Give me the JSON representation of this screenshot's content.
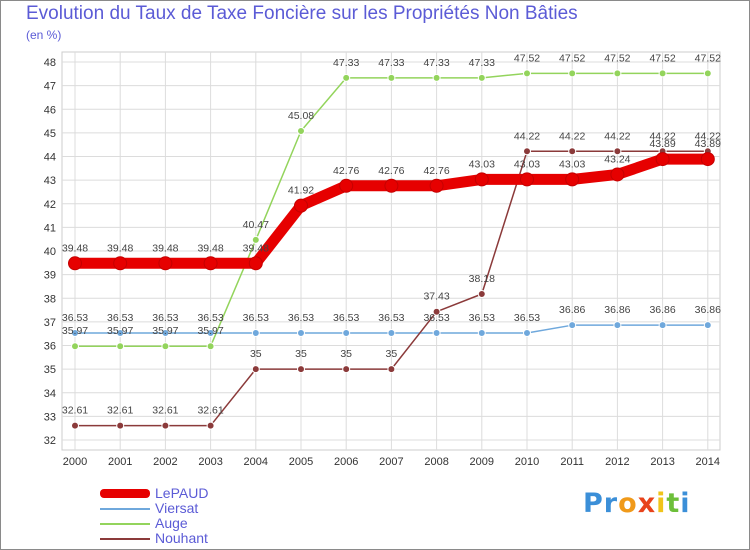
{
  "chart_data": {
    "type": "line",
    "title": "Evolution du Taux de Taxe Foncière sur les Propriétés Non Bâties",
    "ylabel": "(en %)",
    "x": [
      "2000",
      "2001",
      "2002",
      "2003",
      "2004",
      "2005",
      "2006",
      "2007",
      "2008",
      "2009",
      "2010",
      "2011",
      "2012",
      "2013",
      "2014"
    ],
    "ylim": [
      32,
      48
    ],
    "yticks": [
      32,
      33,
      34,
      35,
      36,
      37,
      38,
      39,
      40,
      41,
      42,
      43,
      44,
      45,
      46,
      47,
      48
    ],
    "grid": true,
    "legend_position": "bottom-left",
    "series": [
      {
        "name": "LePAUD",
        "color": "#e60000",
        "values": [
          39.48,
          39.48,
          39.48,
          39.48,
          39.48,
          41.92,
          42.76,
          42.76,
          42.76,
          43.03,
          43.03,
          43.03,
          43.24,
          43.89,
          43.89
        ],
        "labels": [
          "39.48",
          "39.48",
          "39.48",
          "39.48",
          "39.48",
          "41.92",
          "42.76",
          "42.76",
          "42.76",
          "43.03",
          "43.03",
          "43.03",
          "43.24",
          "43.89",
          "43.89"
        ]
      },
      {
        "name": "Viersat",
        "color": "#6fa8dc",
        "values": [
          36.53,
          36.53,
          36.53,
          36.53,
          36.53,
          36.53,
          36.53,
          36.53,
          36.53,
          36.53,
          36.53,
          36.86,
          36.86,
          36.86,
          36.86
        ],
        "labels": [
          "36.53",
          "36.53",
          "36.53",
          "36.53",
          "36.53",
          "36.53",
          "36.53",
          "36.53",
          "36.53",
          "36.53",
          "36.53",
          "36.86",
          "36.86",
          "36.86",
          "36.86"
        ]
      },
      {
        "name": "Auge",
        "color": "#93d45c",
        "values": [
          35.97,
          35.97,
          35.97,
          35.97,
          40.47,
          45.08,
          47.33,
          47.33,
          47.33,
          47.33,
          47.52,
          47.52,
          47.52,
          47.52,
          47.52
        ],
        "labels": [
          "35.97",
          "35.97",
          "35.97",
          "35.97",
          "40.47",
          "45.08",
          "47.33",
          "47.33",
          "47.33",
          "47.33",
          "47.52",
          "47.52",
          "47.52",
          "47.52",
          "47.52"
        ]
      },
      {
        "name": "Nouhant",
        "color": "#8b3a3a",
        "values": [
          32.61,
          32.61,
          32.61,
          32.61,
          35,
          35,
          35,
          35,
          37.43,
          38.18,
          44.22,
          44.22,
          44.22,
          44.22,
          44.22
        ],
        "labels": [
          "32.61",
          "32.61",
          "32.61",
          "32.61",
          "35",
          "35",
          "35",
          "35",
          "37.43",
          "38.18",
          "44.22",
          "44.22",
          "44.22",
          "44.22",
          "44.22"
        ]
      }
    ]
  },
  "logo": {
    "letters": [
      "P",
      "r",
      "o",
      "x",
      "i",
      "t",
      "i"
    ],
    "colors": [
      "#3b8fd8",
      "#3b8fd8",
      "#f09a1a",
      "#e8431b",
      "#f0c41a",
      "#6dbf3a",
      "#3b8fd8"
    ]
  }
}
